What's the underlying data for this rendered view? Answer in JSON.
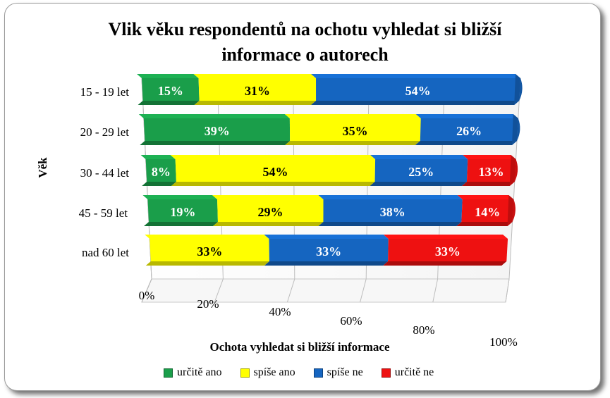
{
  "chart_data": {
    "type": "bar",
    "orientation": "horizontal",
    "stacked": "100%",
    "title_lines": [
      "Vlik věku respondentů na ochotu vyhledat si bližší",
      "informace o autorech"
    ],
    "xlabel": "Ochota vyhledat si bližší informace",
    "ylabel": "Věk",
    "x_ticks": [
      "0%",
      "20%",
      "40%",
      "60%",
      "80%",
      "100%"
    ],
    "xlim": [
      0,
      100
    ],
    "legend_position": "bottom",
    "categories": [
      "15 - 19 let",
      "20 - 29 let",
      "30 - 44 let",
      "45 - 59 let",
      "nad 60 let"
    ],
    "series": [
      {
        "name": "určitě ano",
        "color": "#1a9e4a",
        "values": [
          15,
          39,
          8,
          19,
          0
        ],
        "labels": [
          "15%",
          "39%",
          "8%",
          "19%",
          ""
        ]
      },
      {
        "name": "spíše ano",
        "color": "#ffff00",
        "values": [
          31,
          35,
          54,
          29,
          33
        ],
        "labels": [
          "31%",
          "35%",
          "54%",
          "29%",
          "33%"
        ]
      },
      {
        "name": "spíše ne",
        "color": "#1565c0",
        "values": [
          54,
          26,
          25,
          38,
          33
        ],
        "labels": [
          "54%",
          "26%",
          "25%",
          "38%",
          "33%"
        ]
      },
      {
        "name": "určitě ne",
        "color": "#ee1111",
        "values": [
          0,
          0,
          13,
          14,
          33
        ],
        "labels": [
          "",
          "",
          "13%",
          "14%",
          "33%"
        ]
      }
    ]
  }
}
